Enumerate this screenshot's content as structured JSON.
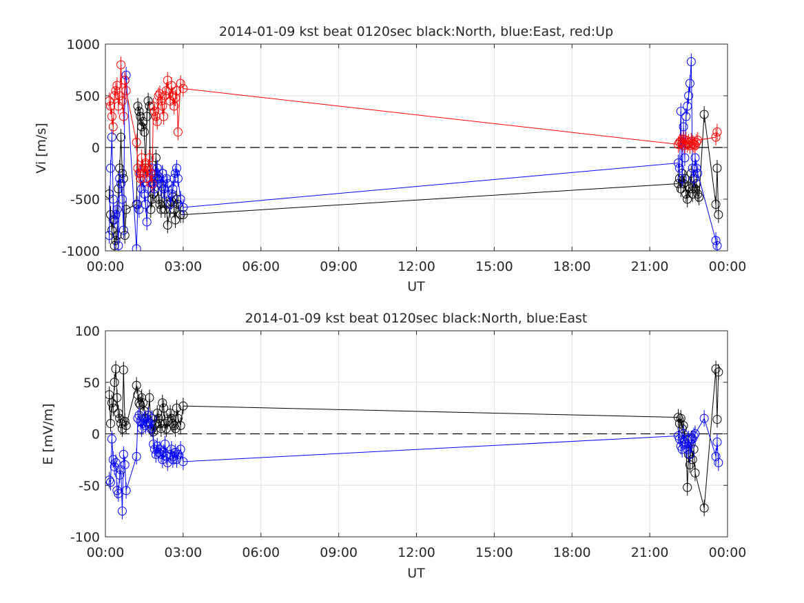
{
  "chart_data": [
    {
      "type": "scatter",
      "title": "2014-01-09 kst beat 0120sec black:North, blue:East, red:Up",
      "xlabel": "UT",
      "ylabel": "Vi [m/s]",
      "x_unit": "hours UT",
      "xlim": [
        0,
        24
      ],
      "ylim": [
        -1000,
        1000
      ],
      "xticks": [
        0,
        3,
        6,
        9,
        12,
        15,
        18,
        21,
        24
      ],
      "xtick_labels": [
        "00:00",
        "03:00",
        "06:00",
        "09:00",
        "12:00",
        "15:00",
        "18:00",
        "21:00",
        "00:00"
      ],
      "yticks": [
        -1000,
        -500,
        0,
        500,
        1000
      ],
      "ytick_labels": [
        "-1000",
        "-500",
        "0",
        "500",
        "1000"
      ],
      "grid": true,
      "zero_line": true,
      "series": [
        {
          "name": "North",
          "color": "#000000",
          "x": [
            0.15,
            0.2,
            0.25,
            0.3,
            0.35,
            0.4,
            0.45,
            0.5,
            0.55,
            0.6,
            0.65,
            0.7,
            0.75,
            0.8,
            1.2,
            1.25,
            1.3,
            1.35,
            1.4,
            1.45,
            1.5,
            1.55,
            1.6,
            1.65,
            1.7,
            1.75,
            1.8,
            1.85,
            1.9,
            1.95,
            2.0,
            2.05,
            2.1,
            2.15,
            2.2,
            2.25,
            2.3,
            2.35,
            2.4,
            2.5,
            2.55,
            2.6,
            2.65,
            2.7,
            2.75,
            2.8,
            2.9,
            3.0,
            22.1,
            22.15,
            22.2,
            22.25,
            22.3,
            22.35,
            22.4,
            22.45,
            22.5,
            22.55,
            22.6,
            22.65,
            22.7,
            22.75,
            22.8,
            22.85,
            22.9,
            23.1,
            23.55,
            23.6,
            23.65
          ],
          "y": [
            -450,
            -650,
            -800,
            -700,
            -950,
            -900,
            -850,
            -400,
            -200,
            100,
            -250,
            -300,
            -850,
            -600,
            -550,
            400,
            350,
            300,
            200,
            250,
            150,
            -200,
            300,
            450,
            400,
            -600,
            -500,
            -450,
            -300,
            -100,
            -300,
            -500,
            -550,
            -600,
            -250,
            -400,
            -600,
            -550,
            -750,
            -600,
            -520,
            -480,
            -600,
            -700,
            -500,
            -550,
            -650,
            -650,
            -350,
            -300,
            -400,
            -250,
            -350,
            -300,
            -450,
            -500,
            -380,
            -400,
            -250,
            -450,
            -300,
            -400,
            -350,
            -450,
            -480,
            320,
            -550,
            -200,
            -650
          ]
        },
        {
          "name": "East",
          "color": "#0000ff",
          "x": [
            0.15,
            0.2,
            0.25,
            0.3,
            0.35,
            0.4,
            0.45,
            0.5,
            0.55,
            0.6,
            0.65,
            0.7,
            0.75,
            0.8,
            1.2,
            1.25,
            1.3,
            1.35,
            1.4,
            1.45,
            1.5,
            1.55,
            1.6,
            1.65,
            1.7,
            1.75,
            1.8,
            1.85,
            1.9,
            1.95,
            2.0,
            2.05,
            2.1,
            2.15,
            2.2,
            2.25,
            2.3,
            2.35,
            2.4,
            2.5,
            2.55,
            2.6,
            2.65,
            2.7,
            2.75,
            2.8,
            2.9,
            3.0,
            22.1,
            22.15,
            22.2,
            22.25,
            22.3,
            22.35,
            22.4,
            22.45,
            22.5,
            22.55,
            22.6,
            22.65,
            22.7,
            22.75,
            22.8,
            22.85,
            23.55,
            23.6
          ],
          "y": [
            -850,
            -200,
            100,
            -500,
            -700,
            -650,
            -600,
            -950,
            -300,
            -350,
            -500,
            -800,
            650,
            700,
            -980,
            -550,
            -600,
            -250,
            -400,
            -300,
            -450,
            -550,
            -720,
            -400,
            -300,
            -250,
            -200,
            -350,
            -400,
            -250,
            -200,
            -280,
            -300,
            -350,
            -250,
            -400,
            -450,
            -300,
            -350,
            -550,
            -450,
            -400,
            -300,
            -250,
            -200,
            -300,
            -500,
            -580,
            -150,
            -200,
            350,
            -300,
            200,
            -100,
            300,
            400,
            500,
            620,
            830,
            -200,
            -300,
            -100,
            -200,
            -250,
            -900,
            -950
          ]
        },
        {
          "name": "Up",
          "color": "#ff0000",
          "x": [
            0.15,
            0.2,
            0.25,
            0.3,
            0.35,
            0.4,
            0.45,
            0.5,
            0.55,
            0.6,
            0.65,
            0.7,
            0.75,
            0.8,
            1.2,
            1.25,
            1.3,
            1.35,
            1.4,
            1.45,
            1.5,
            1.55,
            1.6,
            1.65,
            1.7,
            1.75,
            1.8,
            1.85,
            1.9,
            1.95,
            2.0,
            2.05,
            2.1,
            2.15,
            2.2,
            2.25,
            2.3,
            2.35,
            2.4,
            2.5,
            2.55,
            2.6,
            2.65,
            2.7,
            2.75,
            2.8,
            2.9,
            3.0,
            22.1,
            22.15,
            22.2,
            22.25,
            22.3,
            22.35,
            22.4,
            22.45,
            22.5,
            22.55,
            22.6,
            22.65,
            22.7,
            22.75,
            22.8,
            22.85,
            23.55,
            23.6
          ],
          "y": [
            450,
            400,
            300,
            200,
            500,
            550,
            600,
            400,
            500,
            800,
            450,
            300,
            650,
            550,
            50,
            -200,
            -250,
            -300,
            -100,
            -200,
            -250,
            -150,
            -300,
            -200,
            -100,
            -250,
            -350,
            400,
            350,
            300,
            250,
            500,
            520,
            450,
            400,
            300,
            500,
            550,
            650,
            450,
            600,
            500,
            400,
            480,
            550,
            150,
            620,
            570,
            30,
            50,
            60,
            40,
            80,
            20,
            70,
            30,
            50,
            20,
            60,
            40,
            30,
            20,
            50,
            70,
            100,
            150
          ]
        }
      ]
    },
    {
      "type": "scatter",
      "title": "2014-01-09 kst beat 0120sec black:North, blue:East",
      "xlabel": "UT",
      "ylabel": "E [mV/m]",
      "x_unit": "hours UT",
      "xlim": [
        0,
        24
      ],
      "ylim": [
        -100,
        100
      ],
      "xticks": [
        0,
        3,
        6,
        9,
        12,
        15,
        18,
        21,
        24
      ],
      "xtick_labels": [
        "00:00",
        "03:00",
        "06:00",
        "09:00",
        "12:00",
        "15:00",
        "18:00",
        "21:00",
        "00:00"
      ],
      "yticks": [
        -100,
        -50,
        0,
        50,
        100
      ],
      "ytick_labels": [
        "-100",
        "-50",
        "0",
        "50",
        "100"
      ],
      "grid": true,
      "zero_line": true,
      "series": [
        {
          "name": "North",
          "color": "#000000",
          "x": [
            0.15,
            0.2,
            0.25,
            0.3,
            0.35,
            0.4,
            0.45,
            0.5,
            0.55,
            0.6,
            0.65,
            0.7,
            0.75,
            0.8,
            1.2,
            1.25,
            1.3,
            1.35,
            1.4,
            1.45,
            1.5,
            1.55,
            1.6,
            1.65,
            1.7,
            1.75,
            1.8,
            1.85,
            1.9,
            1.95,
            2.0,
            2.05,
            2.1,
            2.15,
            2.2,
            2.25,
            2.3,
            2.35,
            2.4,
            2.5,
            2.55,
            2.6,
            2.65,
            2.7,
            2.75,
            2.8,
            2.9,
            3.0,
            22.1,
            22.15,
            22.2,
            22.25,
            22.3,
            22.35,
            22.4,
            22.45,
            22.5,
            22.55,
            22.6,
            22.65,
            22.7,
            22.75,
            23.1,
            23.55,
            23.6,
            23.65
          ],
          "y": [
            38,
            10,
            30,
            25,
            50,
            63,
            35,
            20,
            15,
            10,
            5,
            62,
            12,
            8,
            47,
            38,
            30,
            28,
            35,
            30,
            22,
            15,
            12,
            18,
            35,
            10,
            5,
            2,
            8,
            10,
            20,
            15,
            10,
            5,
            30,
            25,
            10,
            5,
            12,
            20,
            15,
            10,
            8,
            5,
            25,
            15,
            8,
            27,
            16,
            10,
            15,
            5,
            8,
            -5,
            -10,
            -52,
            -20,
            -30,
            -5,
            -25,
            -15,
            -38,
            -72,
            63,
            14,
            60
          ]
        },
        {
          "name": "East",
          "color": "#0000ff",
          "x": [
            0.15,
            0.2,
            0.25,
            0.3,
            0.35,
            0.4,
            0.45,
            0.5,
            0.55,
            0.6,
            0.65,
            0.7,
            0.75,
            0.8,
            1.2,
            1.25,
            1.3,
            1.35,
            1.4,
            1.45,
            1.5,
            1.55,
            1.6,
            1.65,
            1.7,
            1.75,
            1.8,
            1.85,
            1.9,
            1.95,
            2.0,
            2.05,
            2.1,
            2.15,
            2.2,
            2.25,
            2.3,
            2.35,
            2.4,
            2.5,
            2.55,
            2.6,
            2.65,
            2.7,
            2.75,
            2.8,
            2.9,
            3.0,
            22.1,
            22.15,
            22.2,
            22.25,
            22.3,
            22.35,
            22.4,
            22.45,
            22.5,
            22.55,
            22.6,
            22.65,
            22.7,
            22.75,
            23.1,
            23.55,
            23.6,
            23.65
          ],
          "y": [
            -45,
            -47,
            -5,
            -25,
            -32,
            -28,
            -55,
            -58,
            -40,
            -35,
            -75,
            -20,
            -30,
            -55,
            -22,
            15,
            18,
            12,
            5,
            10,
            15,
            8,
            12,
            18,
            10,
            5,
            15,
            -10,
            -15,
            -20,
            -12,
            -18,
            -15,
            -20,
            -25,
            -18,
            -10,
            -22,
            -28,
            -20,
            -15,
            -25,
            -22,
            -18,
            -25,
            -20,
            -15,
            -27,
            -2,
            -5,
            -12,
            -15,
            0,
            -8,
            -10,
            -15,
            -5,
            -20,
            -10,
            -5,
            -2,
            0,
            15,
            -22,
            -8,
            -28
          ]
        }
      ]
    }
  ]
}
